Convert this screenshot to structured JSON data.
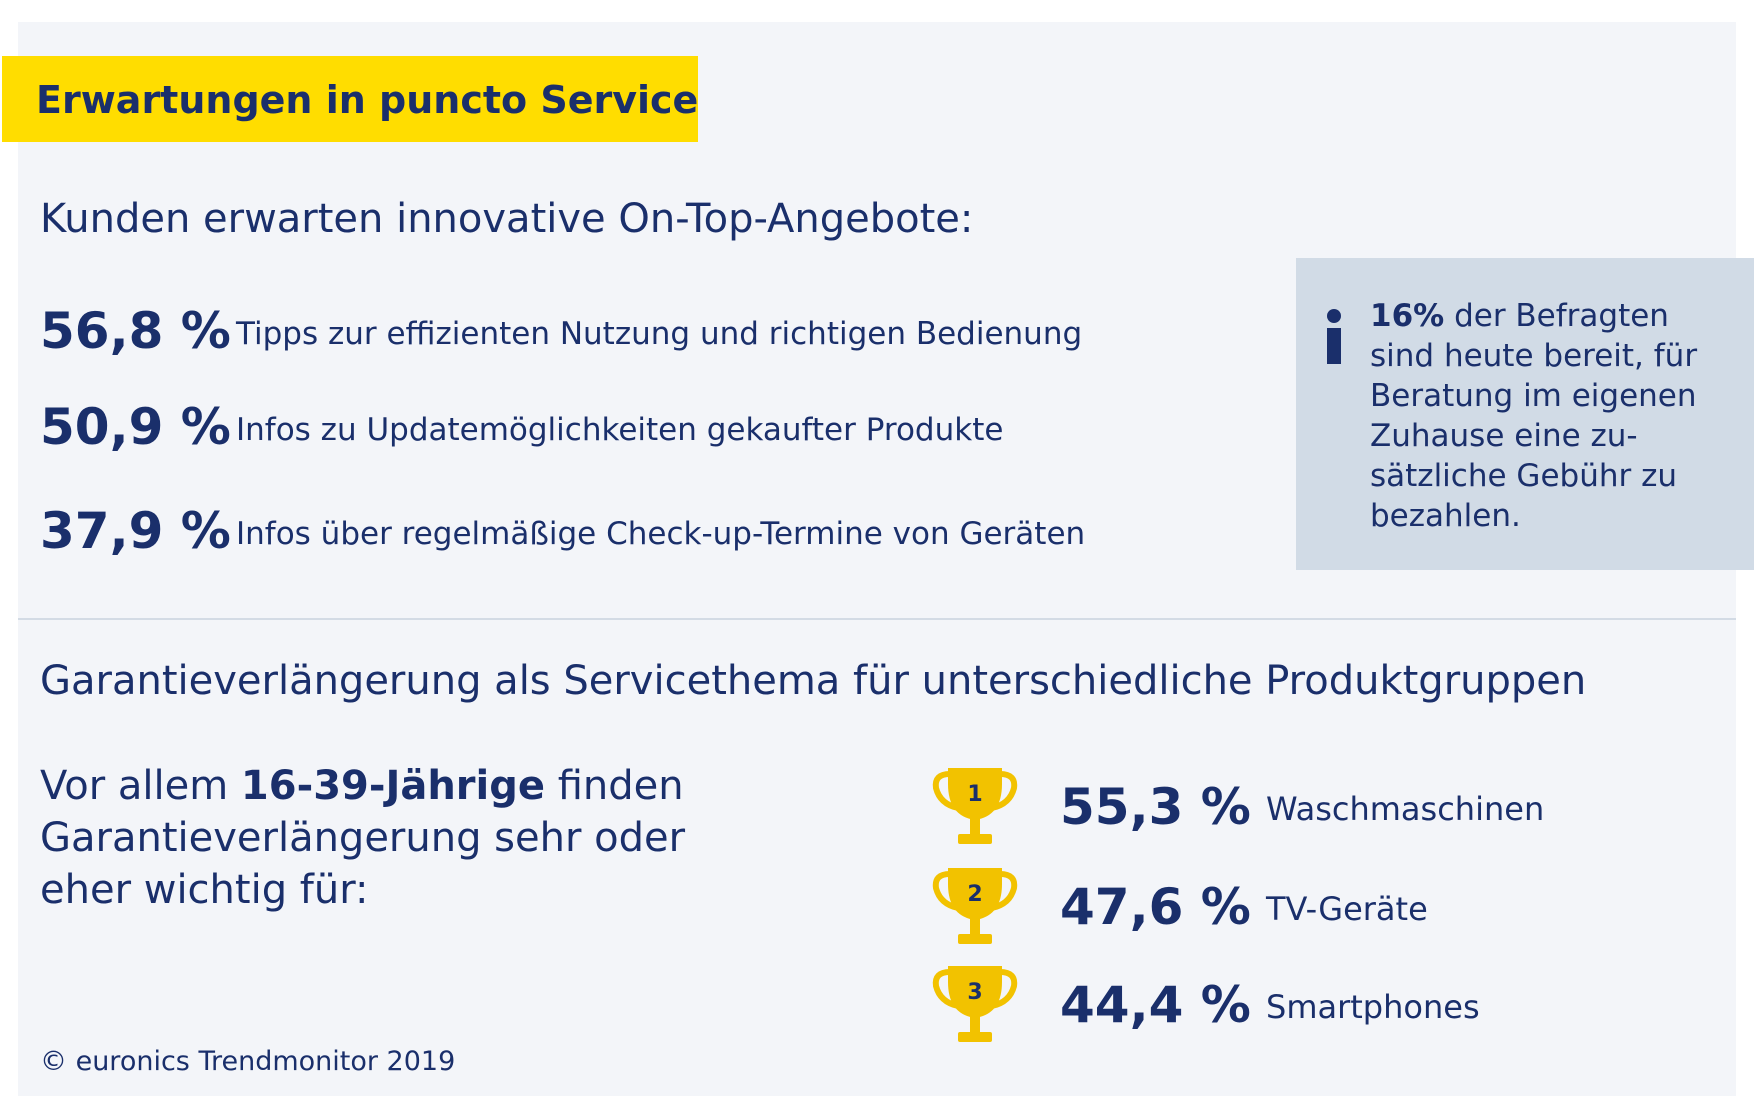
{
  "title": "Erwartungen in puncto Service",
  "section1": {
    "heading": "Kunden erwarten innovative On-Top-Angebote:",
    "items": [
      {
        "value": "56,8 %",
        "label": "Tipps zur effizienten Nutzung und richtigen Bedienung"
      },
      {
        "value": "50,9 %",
        "label": "Infos zu Updatemöglichkeiten gekaufter Produkte"
      },
      {
        "value": "37,9 %",
        "label": "Infos über regelmäßige Check-up-Termine von Geräten"
      }
    ]
  },
  "info_box": {
    "icon": "info-icon",
    "highlight": "16%",
    "text_lines": [
      "der Befragten",
      "sind heute bereit, für",
      "Beratung im eigenen",
      "Zuhause eine zu-",
      "sätzliche Gebühr zu",
      "bezahlen."
    ]
  },
  "section2": {
    "heading": "Garantieverlängerung als Servicethema für unterschiedliche Produktgruppen",
    "intro_before": "Vor allem",
    "intro_bold": "16-39-Jährige",
    "intro_after_line1": "finden",
    "intro_line2": "Garantieverlängerung sehr oder",
    "intro_line3": "eher wichtig für:",
    "ranking": [
      {
        "rank": "1",
        "value": "55,3 %",
        "label": "Waschmaschinen"
      },
      {
        "rank": "2",
        "value": "47,6 %",
        "label": "TV-Geräte"
      },
      {
        "rank": "3",
        "value": "44,4 %",
        "label": "Smartphones"
      }
    ]
  },
  "footer": "© euronics Trendmonitor 2019",
  "colors": {
    "accent_yellow": "#ffdd00",
    "navy": "#1a2f6b",
    "panel_bg": "#f3f5f9",
    "info_bg": "#d1dbe6",
    "trophy_gold": "#f2c200"
  }
}
